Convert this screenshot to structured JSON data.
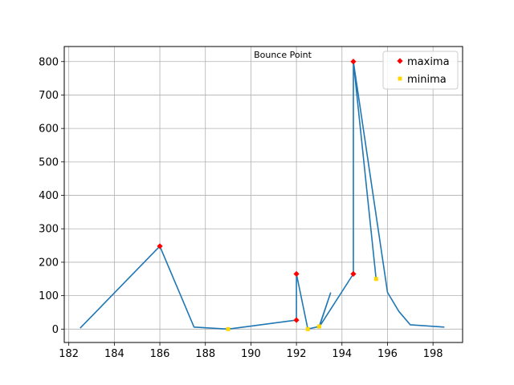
{
  "chart_data": {
    "type": "line",
    "xlim": [
      181.8,
      199.3
    ],
    "ylim": [
      -40,
      845
    ],
    "x_ticks": [
      182,
      184,
      186,
      188,
      190,
      192,
      194,
      196,
      198
    ],
    "y_ticks": [
      0,
      100,
      200,
      300,
      400,
      500,
      600,
      700,
      800
    ],
    "grid": true,
    "legend_position": "top-right",
    "line_color": "#1f77b4",
    "line": {
      "x": [
        182.5,
        186.0,
        187.5,
        189.0,
        192.0,
        192.0,
        192.5,
        193.0,
        193.5,
        193.0,
        194.5,
        194.5,
        195.5,
        194.5,
        196.0,
        196.5,
        197.0,
        198.5
      ],
      "y": [
        3,
        248,
        6,
        0,
        27,
        165,
        0,
        8,
        108,
        6,
        165,
        800,
        150,
        800,
        110,
        53,
        13,
        6
      ]
    },
    "series": [
      {
        "name": "maxima",
        "type": "scatter",
        "marker": "diamond",
        "color": "#ff0000",
        "x": [
          186.0,
          192.0,
          192.0,
          194.5,
          194.5
        ],
        "y": [
          248,
          165,
          27,
          165,
          800
        ]
      },
      {
        "name": "minima",
        "type": "scatter",
        "marker": "square",
        "color": "#ffd700",
        "x": [
          189.0,
          192.5,
          193.0,
          195.5
        ],
        "y": [
          0,
          0,
          8,
          150
        ]
      }
    ],
    "annotations": [
      {
        "text": "Bounce Point",
        "x": 192.7,
        "y": 800
      }
    ]
  }
}
